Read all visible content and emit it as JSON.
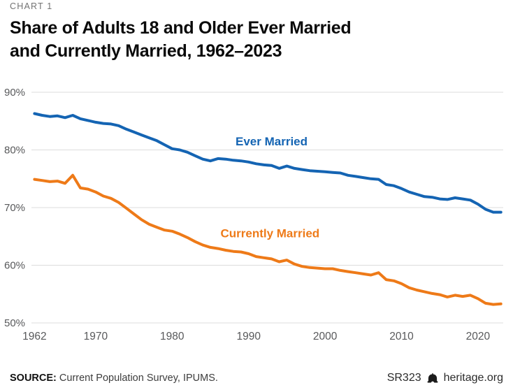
{
  "header": {
    "kicker": "CHART 1",
    "title_line1": "Share of Adults 18 and Older Ever Married",
    "title_line2": "and Currently Married, 1962–2023"
  },
  "footer": {
    "source_label": "SOURCE:",
    "source_text": " Current Population Survey, IPUMS.",
    "report_id": "SR323",
    "site": "heritage.org",
    "logo_icon": "liberty-bell-icon"
  },
  "colors": {
    "ever_married": "#1464B3",
    "currently_married": "#EE7A18",
    "gridline": "#DCDCDC",
    "axis_text": "#58595B",
    "title_text": "#0A0A0A",
    "kicker_text": "#737373"
  },
  "chart_data": {
    "type": "line",
    "title": "Share of Adults 18 and Older Ever Married and Currently Married, 1962–2023",
    "xlabel": "",
    "ylabel": "",
    "grid": true,
    "legend": "inline-labels",
    "ylim": [
      50,
      90
    ],
    "xlim": [
      1961.6,
      2023.3
    ],
    "yticks": [
      90,
      80,
      70,
      60,
      50
    ],
    "ytick_labels": [
      "90%",
      "80%",
      "70%",
      "60%",
      "50%"
    ],
    "xticks": [
      1962,
      1970,
      1980,
      1990,
      2000,
      2010,
      2020
    ],
    "x": [
      1962,
      1963,
      1964,
      1965,
      1966,
      1967,
      1968,
      1969,
      1970,
      1971,
      1972,
      1973,
      1974,
      1975,
      1976,
      1977,
      1978,
      1979,
      1980,
      1981,
      1982,
      1983,
      1984,
      1985,
      1986,
      1987,
      1988,
      1989,
      1990,
      1991,
      1992,
      1993,
      1994,
      1995,
      1996,
      1997,
      1998,
      1999,
      2000,
      2001,
      2002,
      2003,
      2004,
      2005,
      2006,
      2007,
      2008,
      2009,
      2010,
      2011,
      2012,
      2013,
      2014,
      2015,
      2016,
      2017,
      2018,
      2019,
      2020,
      2021,
      2022,
      2023
    ],
    "series": [
      {
        "id": "ever-married",
        "name": "Ever Married",
        "color": "#1464B3",
        "values": [
          86.3,
          86.0,
          85.8,
          85.9,
          85.6,
          86.0,
          85.4,
          85.1,
          84.8,
          84.6,
          84.5,
          84.2,
          83.6,
          83.1,
          82.6,
          82.1,
          81.6,
          80.9,
          80.2,
          80.0,
          79.6,
          79.0,
          78.4,
          78.1,
          78.5,
          78.4,
          78.2,
          78.1,
          77.9,
          77.6,
          77.4,
          77.3,
          76.8,
          77.2,
          76.8,
          76.6,
          76.4,
          76.3,
          76.2,
          76.1,
          76.0,
          75.6,
          75.4,
          75.2,
          75.0,
          74.9,
          74.0,
          73.8,
          73.3,
          72.7,
          72.3,
          71.9,
          71.8,
          71.5,
          71.4,
          71.7,
          71.5,
          71.3,
          70.6,
          69.7,
          69.2,
          69.2
        ]
      },
      {
        "id": "currently-married",
        "name": "Currently Married",
        "color": "#EE7A18",
        "values": [
          74.9,
          74.7,
          74.5,
          74.6,
          74.2,
          75.6,
          73.4,
          73.2,
          72.7,
          72.0,
          71.6,
          70.9,
          69.9,
          68.9,
          67.9,
          67.1,
          66.6,
          66.1,
          65.9,
          65.4,
          64.8,
          64.1,
          63.5,
          63.1,
          62.9,
          62.6,
          62.4,
          62.3,
          62.0,
          61.5,
          61.3,
          61.1,
          60.6,
          60.9,
          60.2,
          59.8,
          59.6,
          59.5,
          59.4,
          59.4,
          59.1,
          58.9,
          58.7,
          58.5,
          58.3,
          58.7,
          57.5,
          57.3,
          56.8,
          56.1,
          55.7,
          55.4,
          55.1,
          54.9,
          54.5,
          54.8,
          54.6,
          54.8,
          54.2,
          53.4,
          53.2,
          53.3
        ]
      }
    ],
    "labels": [
      {
        "id": "ever-married-label",
        "text": "Ever Married",
        "x_year": 1993.0,
        "y_value": 81.5,
        "color": "#1464B3"
      },
      {
        "id": "currently-married-label",
        "text": "Currently Married",
        "x_year": 1992.8,
        "y_value": 65.6,
        "color": "#EE7A18"
      }
    ]
  }
}
